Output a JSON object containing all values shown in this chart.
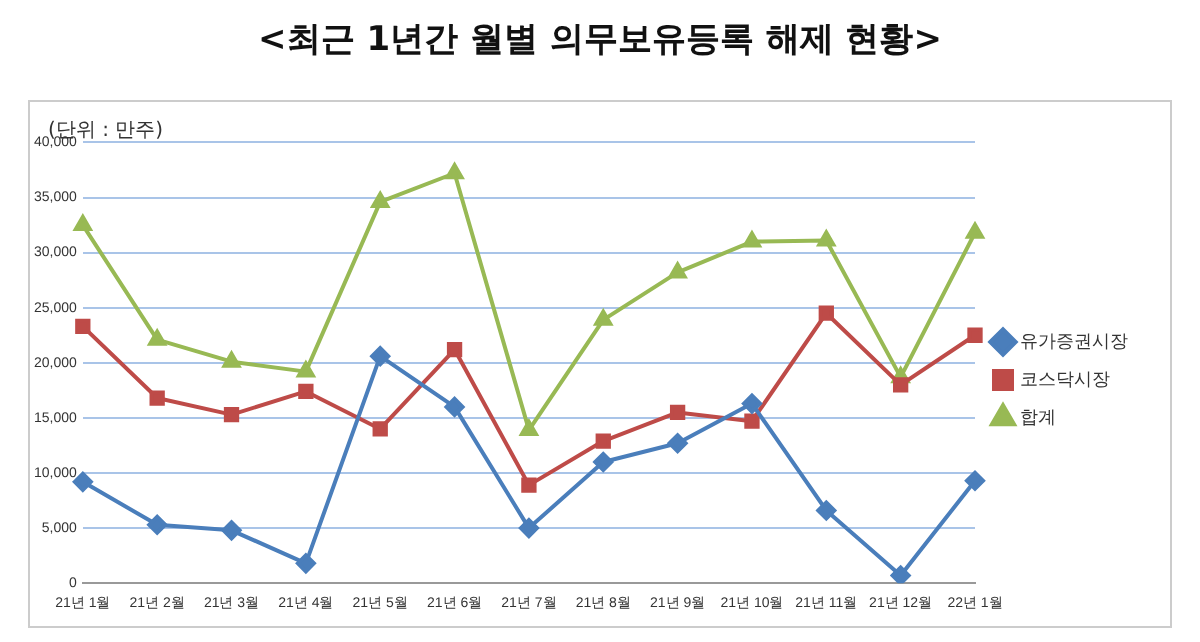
{
  "chart_data": {
    "type": "line",
    "title": "<최근 1년간 월별 의무보유등록 해제 현황>",
    "annotations": [
      "(단위 : 만주)"
    ],
    "categories": [
      "21년 1월",
      "21년 2월",
      "21년 3월",
      "21년 4월",
      "21년 5월",
      "21년 6월",
      "21년 7월",
      "21년 8월",
      "21년 9월",
      "21년 10월",
      "21년 11월",
      "21년 12월",
      "22년 1월"
    ],
    "series": [
      {
        "name": "유가증권시장",
        "color": "#4a7ebb",
        "marker": "diamond",
        "values": [
          9200,
          5300,
          4800,
          1800,
          20600,
          16000,
          5000,
          11000,
          12700,
          16300,
          6600,
          700,
          9300
        ]
      },
      {
        "name": "코스닥시장",
        "color": "#be4b48",
        "marker": "square",
        "values": [
          23300,
          16800,
          15300,
          17400,
          14000,
          21200,
          8900,
          12900,
          15500,
          14700,
          24500,
          18000,
          22500
        ]
      },
      {
        "name": "합계",
        "color": "#98b954",
        "marker": "triangle",
        "values": [
          32500,
          22100,
          20100,
          19200,
          34600,
          37200,
          13900,
          23900,
          28200,
          31000,
          31100,
          18700,
          31800
        ]
      }
    ],
    "ylim": [
      0,
      40000
    ],
    "yticks": [
      0,
      {
        "value": 5000,
        "label": "5,000"
      },
      {
        "value": 10000,
        "label": "10,000"
      },
      {
        "value": 15000,
        "label": "15,000"
      },
      {
        "value": 20000,
        "label": "20,000"
      },
      {
        "value": 25000,
        "label": "25,000"
      },
      {
        "value": 30000,
        "label": "30,000"
      },
      {
        "value": 35000,
        "label": "35,000"
      },
      {
        "value": 40000,
        "label": "40,000"
      }
    ],
    "grid": "y",
    "legend": "right",
    "line_style": "solid"
  }
}
